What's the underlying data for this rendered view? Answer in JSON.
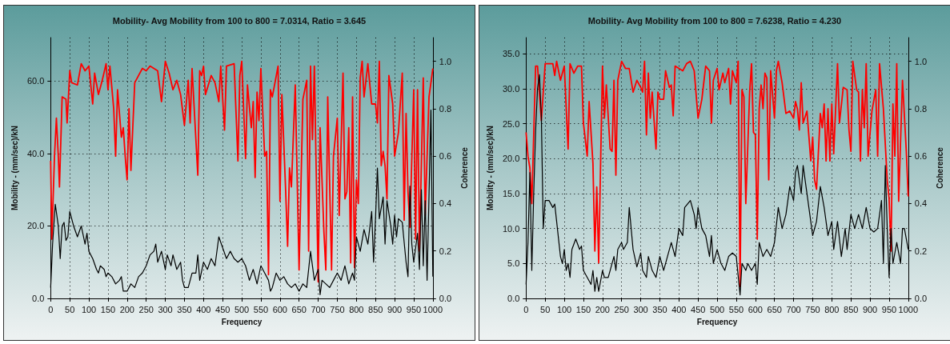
{
  "chart_data": [
    {
      "type": "line",
      "title": "Mobility- Avg Mobility from 100 to 800 = 7.0314, Ratio = 3.645",
      "xlabel": "Frequency",
      "ylabel": "Mobility - (mm/sec)/kN",
      "y2label": "Coherence",
      "xlim": [
        0,
        1000
      ],
      "xticks": [
        0,
        50,
        100,
        150,
        200,
        250,
        300,
        350,
        400,
        450,
        500,
        550,
        600,
        650,
        700,
        750,
        800,
        850,
        900,
        950,
        1000
      ],
      "ylim": [
        0,
        72
      ],
      "yticks": [
        {
          "value": 0,
          "label": "0.0"
        },
        {
          "value": 20,
          "label": "20.0"
        },
        {
          "value": 40,
          "label": "40.0"
        },
        {
          "value": 60,
          "label": "60.0"
        }
      ],
      "y2lim": [
        0,
        1.1
      ],
      "y2ticks": [
        {
          "value": 0,
          "label": "0.0"
        },
        {
          "value": 0.2,
          "label": "0.2"
        },
        {
          "value": 0.4,
          "label": "0.4"
        },
        {
          "value": 0.6,
          "label": "0.6"
        },
        {
          "value": 0.8,
          "label": "0.8"
        },
        {
          "value": 1,
          "label": "1.0"
        }
      ],
      "grid": true,
      "marker": "none",
      "series": [
        {
          "color": "#000000",
          "x": [
            0,
            5,
            12,
            20,
            25,
            30,
            35,
            40,
            45,
            50,
            60,
            70,
            80,
            90,
            95,
            100,
            110,
            120,
            125,
            130,
            140,
            145,
            150,
            160,
            170,
            180,
            185,
            190,
            200,
            210,
            220,
            230,
            240,
            250,
            260,
            270,
            275,
            280,
            290,
            300,
            305,
            315,
            320,
            330,
            340,
            345,
            350,
            360,
            370,
            380,
            385,
            390,
            400,
            410,
            420,
            430,
            440,
            450,
            460,
            470,
            480,
            490,
            500,
            510,
            520,
            530,
            540,
            550,
            560,
            570,
            575,
            580,
            590,
            600,
            610,
            620,
            630,
            640,
            650,
            660,
            670,
            680,
            690,
            700,
            705,
            710,
            720,
            730,
            740,
            750,
            760,
            770,
            780,
            790,
            795,
            800,
            810,
            820,
            830,
            840,
            845,
            850,
            855,
            860,
            870,
            875,
            880,
            890,
            895,
            900,
            905,
            910,
            920,
            930,
            935,
            940,
            945,
            950,
            960,
            965,
            970,
            975,
            980,
            985,
            995,
            1000
          ],
          "values": [
            3,
            15,
            26,
            20,
            11,
            20,
            21,
            16,
            17,
            24,
            20,
            17,
            20,
            15,
            18,
            13,
            11,
            8,
            7,
            9,
            8,
            6,
            7,
            6,
            4,
            5,
            6,
            2,
            2,
            4,
            3,
            6,
            7,
            9,
            12,
            13,
            15,
            10,
            13,
            8,
            12,
            9,
            12,
            8,
            10,
            5,
            3,
            3,
            7,
            7,
            12,
            5,
            10,
            8,
            11,
            9,
            17,
            14,
            11,
            13,
            11,
            10,
            11,
            9,
            5,
            8,
            4,
            9,
            7,
            5,
            2,
            3,
            7,
            5,
            6,
            4,
            3,
            4,
            2,
            4,
            3,
            13,
            5,
            8,
            1,
            5,
            4,
            3,
            5,
            7,
            5,
            9,
            4,
            7,
            5,
            17,
            13,
            19,
            15,
            24,
            10,
            22,
            36,
            22,
            28,
            15,
            27,
            20,
            15,
            23,
            17,
            22,
            21,
            10,
            6,
            31,
            15,
            10,
            18,
            8,
            30,
            9,
            27,
            5,
            52,
            6
          ]
        },
        {
          "color": "#ff0000",
          "axis": "y2",
          "x": [
            0,
            3,
            10,
            15,
            20,
            23,
            30,
            40,
            43,
            50,
            55,
            70,
            80,
            90,
            100,
            110,
            115,
            125,
            135,
            145,
            150,
            155,
            165,
            170,
            175,
            185,
            190,
            195,
            200,
            205,
            210,
            220,
            230,
            240,
            250,
            260,
            270,
            280,
            290,
            300,
            310,
            320,
            330,
            340,
            350,
            360,
            365,
            370,
            385,
            390,
            395,
            400,
            405,
            420,
            430,
            440,
            445,
            455,
            460,
            480,
            490,
            495,
            500,
            510,
            515,
            525,
            530,
            535,
            540,
            545,
            550,
            560,
            565,
            570,
            575,
            580,
            595,
            600,
            605,
            615,
            620,
            625,
            630,
            640,
            650,
            660,
            670,
            675,
            680,
            685,
            690,
            700,
            705,
            715,
            720,
            725,
            735,
            740,
            750,
            755,
            765,
            770,
            775,
            780,
            785,
            790,
            795,
            800,
            805,
            810,
            815,
            820,
            830,
            840,
            850,
            855,
            860,
            865,
            870,
            875,
            880,
            885,
            895,
            900,
            910,
            920,
            925,
            930,
            935,
            940,
            950,
            955,
            960,
            965,
            975,
            980,
            990,
            1000
          ],
          "values": [
            0.58,
            0.25,
            0.6,
            0.76,
            0.6,
            0.47,
            0.85,
            0.84,
            0.74,
            0.96,
            0.91,
            0.9,
            0.99,
            0.96,
            0.98,
            0.82,
            0.95,
            0.86,
            0.92,
            0.99,
            0.88,
            0.98,
            0.8,
            0.6,
            0.88,
            0.68,
            0.72,
            0.6,
            0.5,
            0.8,
            0.54,
            0.91,
            0.94,
            0.97,
            0.96,
            0.98,
            0.97,
            0.96,
            0.83,
            1.0,
            0.95,
            0.88,
            0.92,
            0.86,
            0.73,
            0.92,
            0.74,
            0.97,
            0.52,
            0.96,
            0.94,
            0.98,
            0.86,
            0.94,
            0.91,
            0.83,
            0.98,
            0.71,
            0.98,
            0.99,
            0.58,
            0.94,
            1.0,
            0.59,
            0.9,
            0.72,
            0.83,
            0.51,
            0.87,
            0.75,
            0.97,
            0.6,
            0.62,
            0.1,
            0.88,
            0.85,
            0.98,
            0.41,
            0.86,
            0.45,
            0.22,
            0.55,
            0.47,
            0.9,
            0.12,
            0.84,
            0.92,
            0.2,
            0.98,
            0.67,
            0.98,
            0.07,
            0.72,
            0.28,
            0.12,
            0.85,
            0.12,
            0.6,
            0.76,
            0.35,
            0.95,
            0.42,
            0.45,
            0.72,
            0.15,
            0.85,
            0.13,
            0.5,
            0.4,
            0.93,
            1.0,
            0.85,
            0.99,
            0.82,
            0.82,
            0.74,
            1.0,
            0.56,
            0.62,
            0.56,
            0.42,
            0.94,
            0.82,
            0.6,
            0.7,
            0.95,
            0.33,
            0.78,
            0.45,
            0.3,
            0.88,
            0.25,
            0.88,
            0.2,
            0.93,
            0.35,
            0.85,
            0.97
          ]
        }
      ]
    },
    {
      "type": "line",
      "title": "Mobility- Avg Mobility from 100 to 800 = 7.6238, Ratio = 4.230",
      "xlabel": "Frequency",
      "ylabel": "Mobility - (mm/sec)/kN",
      "y2label": "Coherence",
      "xlim": [
        0,
        1000
      ],
      "xticks": [
        0,
        50,
        100,
        150,
        200,
        250,
        300,
        350,
        400,
        450,
        500,
        550,
        600,
        650,
        700,
        750,
        800,
        850,
        900,
        950,
        1000
      ],
      "ylim": [
        0,
        37.3
      ],
      "yticks": [
        {
          "value": 0,
          "label": "0.0"
        },
        {
          "value": 5,
          "label": "5.0"
        },
        {
          "value": 10,
          "label": "10.0"
        },
        {
          "value": 15,
          "label": "15.0"
        },
        {
          "value": 20,
          "label": "20.0"
        },
        {
          "value": 25,
          "label": "25.0"
        },
        {
          "value": 30,
          "label": "30.0"
        },
        {
          "value": 35,
          "label": "35.0"
        }
      ],
      "y2lim": [
        0,
        1.1
      ],
      "y2ticks": [
        {
          "value": 0,
          "label": "0.0"
        },
        {
          "value": 0.2,
          "label": "0.2"
        },
        {
          "value": 0.4,
          "label": "0.4"
        },
        {
          "value": 0.6,
          "label": "0.6"
        },
        {
          "value": 0.8,
          "label": "0.8"
        },
        {
          "value": 1,
          "label": "1.0"
        }
      ],
      "grid": true,
      "marker": "none",
      "series": [
        {
          "color": "#000000",
          "x": [
            0,
            5,
            10,
            15,
            20,
            25,
            30,
            35,
            40,
            45,
            50,
            60,
            70,
            75,
            80,
            90,
            95,
            100,
            105,
            110,
            115,
            120,
            130,
            140,
            145,
            150,
            160,
            170,
            175,
            180,
            185,
            190,
            200,
            205,
            215,
            220,
            230,
            235,
            240,
            250,
            255,
            265,
            270,
            280,
            290,
            300,
            305,
            315,
            320,
            330,
            340,
            350,
            360,
            370,
            380,
            390,
            400,
            410,
            415,
            430,
            440,
            445,
            450,
            460,
            470,
            480,
            485,
            490,
            500,
            510,
            520,
            530,
            540,
            550,
            560,
            565,
            575,
            580,
            590,
            600,
            605,
            610,
            620,
            630,
            640,
            650,
            660,
            670,
            680,
            690,
            700,
            705,
            710,
            720,
            725,
            740,
            750,
            760,
            770,
            780,
            790,
            800,
            805,
            815,
            825,
            835,
            840,
            850,
            860,
            870,
            880,
            890,
            900,
            910,
            920,
            930,
            935,
            940,
            945,
            950,
            955,
            960,
            970,
            980,
            985,
            990,
            1000
          ],
          "values": [
            2,
            8,
            18,
            4,
            15,
            24,
            30,
            32,
            26,
            10,
            14,
            14,
            13,
            13.5,
            11,
            6,
            5,
            7,
            4,
            5,
            3,
            7,
            8.5,
            7,
            7.5,
            4,
            3,
            2,
            4,
            1,
            3,
            1,
            4,
            3,
            3,
            4,
            6,
            4,
            7,
            8,
            7,
            8,
            13,
            7,
            4.5,
            6.5,
            4,
            3,
            6,
            4,
            3,
            6,
            4,
            6,
            8,
            6,
            10,
            9,
            13,
            14,
            12,
            10,
            13,
            10,
            9,
            6,
            9,
            5,
            7,
            5,
            4,
            6,
            6.5,
            6,
            0.5,
            5,
            4,
            5,
            4,
            5,
            2,
            8,
            6,
            7,
            6,
            8,
            13,
            10,
            12,
            16,
            14,
            18,
            19,
            15,
            19,
            13,
            9,
            11,
            16,
            13,
            9,
            11,
            7,
            11,
            6,
            10,
            7,
            12,
            10,
            12,
            10,
            13,
            10,
            9.5,
            10,
            14,
            5,
            19,
            10,
            3,
            10,
            5,
            8,
            5,
            10,
            10,
            7
          ]
        },
        {
          "color": "#ff0000",
          "axis": "y2",
          "x": [
            0,
            5,
            10,
            15,
            25,
            30,
            40,
            50,
            60,
            70,
            75,
            80,
            90,
            100,
            110,
            115,
            125,
            135,
            145,
            150,
            160,
            165,
            175,
            180,
            185,
            190,
            200,
            205,
            210,
            220,
            225,
            230,
            235,
            240,
            250,
            260,
            270,
            280,
            290,
            300,
            305,
            310,
            315,
            320,
            325,
            330,
            340,
            345,
            350,
            360,
            365,
            375,
            380,
            385,
            390,
            400,
            410,
            420,
            430,
            440,
            450,
            460,
            470,
            480,
            485,
            490,
            500,
            505,
            515,
            520,
            530,
            535,
            540,
            550,
            555,
            560,
            565,
            570,
            575,
            585,
            590,
            595,
            600,
            605,
            610,
            615,
            620,
            625,
            630,
            635,
            640,
            650,
            655,
            660,
            670,
            680,
            690,
            700,
            705,
            710,
            715,
            720,
            725,
            735,
            745,
            750,
            755,
            760,
            770,
            775,
            780,
            785,
            790,
            795,
            800,
            805,
            815,
            820,
            830,
            840,
            845,
            850,
            855,
            865,
            870,
            875,
            880,
            885,
            890,
            895,
            905,
            915,
            920,
            925,
            935,
            945,
            950,
            955,
            960,
            965,
            970,
            975,
            985,
            995,
            1000
          ],
          "values": [
            0.7,
            0.6,
            0.55,
            0.4,
            0.98,
            0.98,
            0.75,
            0.99,
            0.99,
            0.99,
            0.94,
            1.0,
            0.92,
            0.98,
            0.63,
            0.99,
            0.95,
            0.98,
            0.98,
            0.74,
            0.6,
            0.83,
            0.57,
            0.2,
            0.47,
            0.15,
            0.98,
            0.76,
            0.9,
            0.63,
            0.62,
            0.92,
            0.52,
            0.92,
            1.0,
            0.97,
            0.97,
            0.87,
            0.92,
            0.89,
            0.87,
            1.0,
            0.69,
            0.95,
            0.76,
            0.87,
            0.63,
            0.87,
            0.84,
            0.84,
            0.96,
            0.89,
            0.9,
            0.77,
            0.98,
            0.97,
            0.96,
            0.99,
            1.0,
            0.96,
            0.76,
            0.84,
            0.98,
            0.96,
            0.74,
            0.92,
            0.97,
            0.88,
            0.95,
            0.91,
            0.97,
            0.82,
            0.96,
            0.91,
            1.0,
            0.05,
            0.88,
            0.85,
            0.4,
            0.87,
            0.99,
            0.7,
            0.69,
            0.25,
            0.8,
            0.9,
            0.8,
            0.95,
            0.93,
            0.5,
            0.96,
            0.76,
            0.96,
            1.0,
            0.91,
            0.78,
            0.79,
            0.76,
            0.83,
            0.8,
            0.71,
            0.91,
            0.74,
            0.79,
            0.58,
            0.68,
            0.5,
            0.46,
            0.78,
            0.72,
            0.82,
            0.58,
            0.8,
            0.58,
            0.82,
            0.61,
            0.99,
            0.74,
            0.89,
            0.88,
            0.71,
            0.62,
            1.0,
            0.88,
            0.87,
            0.58,
            0.88,
            0.72,
            0.99,
            0.6,
            0.79,
            0.88,
            0.6,
            0.99,
            0.8,
            0.5,
            0.42,
            0.2,
            0.82,
            0.6,
            0.99,
            0.41,
            0.92,
            0.62,
            0.43
          ]
        }
      ]
    }
  ]
}
